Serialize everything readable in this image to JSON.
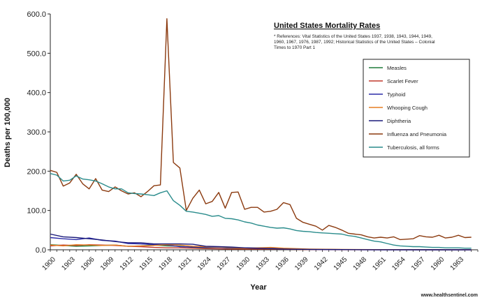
{
  "chart_data": {
    "type": "line",
    "title": "United States Mortality Rates",
    "references": [
      "* References: Vital Statistics of the United States 1937, 1938, 1943, 1944, 1949,",
      "1960, 1967, 1976, 1987, 1992; Historical Statistics of the United States – Colonial",
      "Times to 1970 Part 1"
    ],
    "xlabel": "Year",
    "ylabel": "Deaths per 100,000",
    "ylim": [
      0,
      600
    ],
    "xlim": [
      1900,
      1966
    ],
    "y_ticks": [
      "0.0",
      "100.0",
      "200.0",
      "300.0",
      "400.0",
      "500.0",
      "600.0"
    ],
    "x_ticks": [
      "1900",
      "1903",
      "1906",
      "1909",
      "1912",
      "1915",
      "1918",
      "1921",
      "1924",
      "1927",
      "1930",
      "1933",
      "1936",
      "1939",
      "1942",
      "1945",
      "1948",
      "1951",
      "1954",
      "1957",
      "1960",
      "1963"
    ],
    "grid": false,
    "legend_position": "right",
    "footer": "www.healthsentinel.com",
    "series": [
      {
        "name": "Measles",
        "color": "#1e7b3a",
        "points": [
          [
            1900,
            13
          ],
          [
            1902,
            11
          ],
          [
            1904,
            9
          ],
          [
            1906,
            10
          ],
          [
            1908,
            11
          ],
          [
            1910,
            12
          ],
          [
            1912,
            9
          ],
          [
            1914,
            10
          ],
          [
            1916,
            12
          ],
          [
            1918,
            10
          ],
          [
            1920,
            9
          ],
          [
            1922,
            6
          ],
          [
            1924,
            5
          ],
          [
            1926,
            6
          ],
          [
            1928,
            4
          ],
          [
            1930,
            3
          ],
          [
            1932,
            3
          ],
          [
            1934,
            3
          ],
          [
            1936,
            2
          ],
          [
            1938,
            2
          ],
          [
            1940,
            1
          ],
          [
            1945,
            0.5
          ],
          [
            1950,
            0.3
          ],
          [
            1955,
            0.2
          ],
          [
            1960,
            0.2
          ],
          [
            1965,
            0.1
          ]
        ]
      },
      {
        "name": "Scarlet Fever",
        "color": "#c0392b",
        "points": [
          [
            1900,
            10
          ],
          [
            1902,
            12
          ],
          [
            1904,
            11
          ],
          [
            1906,
            13
          ],
          [
            1908,
            12
          ],
          [
            1910,
            11
          ],
          [
            1912,
            9
          ],
          [
            1914,
            8
          ],
          [
            1916,
            6
          ],
          [
            1918,
            5
          ],
          [
            1920,
            5
          ],
          [
            1922,
            4
          ],
          [
            1924,
            3
          ],
          [
            1926,
            2.5
          ],
          [
            1928,
            2
          ],
          [
            1930,
            2
          ],
          [
            1932,
            2
          ],
          [
            1934,
            2
          ],
          [
            1936,
            1.5
          ],
          [
            1938,
            1
          ],
          [
            1940,
            0.5
          ],
          [
            1945,
            0.2
          ],
          [
            1950,
            0.1
          ],
          [
            1960,
            0.05
          ],
          [
            1965,
            0
          ]
        ]
      },
      {
        "name": "Typhoid",
        "color": "#2b2ba8",
        "points": [
          [
            1900,
            31
          ],
          [
            1902,
            28
          ],
          [
            1904,
            26
          ],
          [
            1906,
            30
          ],
          [
            1908,
            24
          ],
          [
            1910,
            22
          ],
          [
            1912,
            16
          ],
          [
            1914,
            15
          ],
          [
            1916,
            13
          ],
          [
            1918,
            12
          ],
          [
            1920,
            8
          ],
          [
            1922,
            7
          ],
          [
            1924,
            6
          ],
          [
            1926,
            6
          ],
          [
            1928,
            5
          ],
          [
            1930,
            5
          ],
          [
            1932,
            4
          ],
          [
            1934,
            3.5
          ],
          [
            1936,
            3
          ],
          [
            1938,
            2
          ],
          [
            1940,
            1
          ],
          [
            1945,
            0.5
          ],
          [
            1950,
            0.1
          ],
          [
            1960,
            0
          ],
          [
            1965,
            0
          ]
        ]
      },
      {
        "name": "Whooping Cough",
        "color": "#e67e22",
        "points": [
          [
            1900,
            12
          ],
          [
            1902,
            10
          ],
          [
            1904,
            13
          ],
          [
            1906,
            12
          ],
          [
            1908,
            11
          ],
          [
            1910,
            12
          ],
          [
            1912,
            9
          ],
          [
            1914,
            10
          ],
          [
            1916,
            11
          ],
          [
            1918,
            13
          ],
          [
            1920,
            12
          ],
          [
            1922,
            9
          ],
          [
            1924,
            8
          ],
          [
            1926,
            7
          ],
          [
            1928,
            6
          ],
          [
            1930,
            4
          ],
          [
            1932,
            5
          ],
          [
            1934,
            6
          ],
          [
            1936,
            4
          ],
          [
            1938,
            3
          ],
          [
            1940,
            2
          ],
          [
            1945,
            1
          ],
          [
            1950,
            0.5
          ],
          [
            1955,
            0.3
          ],
          [
            1960,
            0.2
          ],
          [
            1965,
            0.1
          ]
        ]
      },
      {
        "name": "Diphtheria",
        "color": "#1a1a7a",
        "points": [
          [
            1900,
            40
          ],
          [
            1902,
            33
          ],
          [
            1904,
            31
          ],
          [
            1906,
            28
          ],
          [
            1908,
            25
          ],
          [
            1910,
            21
          ],
          [
            1912,
            18
          ],
          [
            1914,
            18
          ],
          [
            1916,
            15
          ],
          [
            1918,
            15
          ],
          [
            1920,
            15
          ],
          [
            1922,
            14
          ],
          [
            1924,
            9
          ],
          [
            1926,
            8
          ],
          [
            1928,
            7
          ],
          [
            1930,
            5
          ],
          [
            1932,
            4
          ],
          [
            1934,
            3
          ],
          [
            1936,
            2
          ],
          [
            1938,
            1.5
          ],
          [
            1940,
            1
          ],
          [
            1945,
            0.5
          ],
          [
            1950,
            0.2
          ],
          [
            1955,
            0.1
          ],
          [
            1960,
            0
          ],
          [
            1965,
            0
          ]
        ]
      },
      {
        "name": "Influenza and Pneumonia",
        "color": "#8b3a0f",
        "points": [
          [
            1900,
            202
          ],
          [
            1901,
            197
          ],
          [
            1902,
            162
          ],
          [
            1903,
            170
          ],
          [
            1904,
            192
          ],
          [
            1905,
            168
          ],
          [
            1906,
            155
          ],
          [
            1907,
            181
          ],
          [
            1908,
            152
          ],
          [
            1909,
            148
          ],
          [
            1910,
            160
          ],
          [
            1911,
            150
          ],
          [
            1912,
            142
          ],
          [
            1913,
            145
          ],
          [
            1914,
            135
          ],
          [
            1915,
            148
          ],
          [
            1916,
            163
          ],
          [
            1917,
            165
          ],
          [
            1918,
            588
          ],
          [
            1919,
            222
          ],
          [
            1920,
            208
          ],
          [
            1921,
            100
          ],
          [
            1922,
            131
          ],
          [
            1923,
            152
          ],
          [
            1924,
            117
          ],
          [
            1925,
            123
          ],
          [
            1926,
            146
          ],
          [
            1927,
            106
          ],
          [
            1928,
            146
          ],
          [
            1929,
            147
          ],
          [
            1930,
            103
          ],
          [
            1931,
            108
          ],
          [
            1932,
            108
          ],
          [
            1933,
            96
          ],
          [
            1934,
            98
          ],
          [
            1935,
            103
          ],
          [
            1936,
            120
          ],
          [
            1937,
            115
          ],
          [
            1938,
            80
          ],
          [
            1939,
            70
          ],
          [
            1940,
            65
          ],
          [
            1941,
            60
          ],
          [
            1942,
            50
          ],
          [
            1943,
            62
          ],
          [
            1944,
            57
          ],
          [
            1945,
            50
          ],
          [
            1946,
            42
          ],
          [
            1947,
            40
          ],
          [
            1948,
            38
          ],
          [
            1949,
            33
          ],
          [
            1950,
            30
          ],
          [
            1951,
            32
          ],
          [
            1952,
            30
          ],
          [
            1953,
            33
          ],
          [
            1954,
            26
          ],
          [
            1955,
            27
          ],
          [
            1956,
            28
          ],
          [
            1957,
            36
          ],
          [
            1958,
            33
          ],
          [
            1959,
            32
          ],
          [
            1960,
            37
          ],
          [
            1961,
            30
          ],
          [
            1962,
            32
          ],
          [
            1963,
            37
          ],
          [
            1964,
            31
          ],
          [
            1965,
            32
          ]
        ]
      },
      {
        "name": "Tuberculosis, all forms",
        "color": "#2a8c8c",
        "points": [
          [
            1900,
            194
          ],
          [
            1901,
            190
          ],
          [
            1902,
            175
          ],
          [
            1903,
            177
          ],
          [
            1904,
            188
          ],
          [
            1905,
            180
          ],
          [
            1906,
            178
          ],
          [
            1907,
            175
          ],
          [
            1908,
            168
          ],
          [
            1909,
            160
          ],
          [
            1910,
            155
          ],
          [
            1911,
            155
          ],
          [
            1912,
            145
          ],
          [
            1913,
            143
          ],
          [
            1914,
            142
          ],
          [
            1915,
            140
          ],
          [
            1916,
            138
          ],
          [
            1917,
            145
          ],
          [
            1918,
            150
          ],
          [
            1919,
            125
          ],
          [
            1920,
            113
          ],
          [
            1921,
            98
          ],
          [
            1922,
            96
          ],
          [
            1923,
            93
          ],
          [
            1924,
            90
          ],
          [
            1925,
            85
          ],
          [
            1926,
            87
          ],
          [
            1927,
            80
          ],
          [
            1928,
            79
          ],
          [
            1929,
            76
          ],
          [
            1930,
            71
          ],
          [
            1931,
            68
          ],
          [
            1932,
            63
          ],
          [
            1933,
            60
          ],
          [
            1934,
            57
          ],
          [
            1935,
            55
          ],
          [
            1936,
            56
          ],
          [
            1937,
            53
          ],
          [
            1938,
            49
          ],
          [
            1939,
            47
          ],
          [
            1940,
            46
          ],
          [
            1941,
            44
          ],
          [
            1942,
            43
          ],
          [
            1943,
            42
          ],
          [
            1944,
            41
          ],
          [
            1945,
            40
          ],
          [
            1946,
            36
          ],
          [
            1947,
            34
          ],
          [
            1948,
            30
          ],
          [
            1949,
            26
          ],
          [
            1950,
            22
          ],
          [
            1951,
            20
          ],
          [
            1952,
            16
          ],
          [
            1953,
            12
          ],
          [
            1954,
            10
          ],
          [
            1955,
            9
          ],
          [
            1956,
            8
          ],
          [
            1957,
            8
          ],
          [
            1958,
            7
          ],
          [
            1959,
            6
          ],
          [
            1960,
            6
          ],
          [
            1961,
            5
          ],
          [
            1962,
            5
          ],
          [
            1963,
            5
          ],
          [
            1964,
            4
          ],
          [
            1965,
            4
          ]
        ]
      }
    ]
  }
}
